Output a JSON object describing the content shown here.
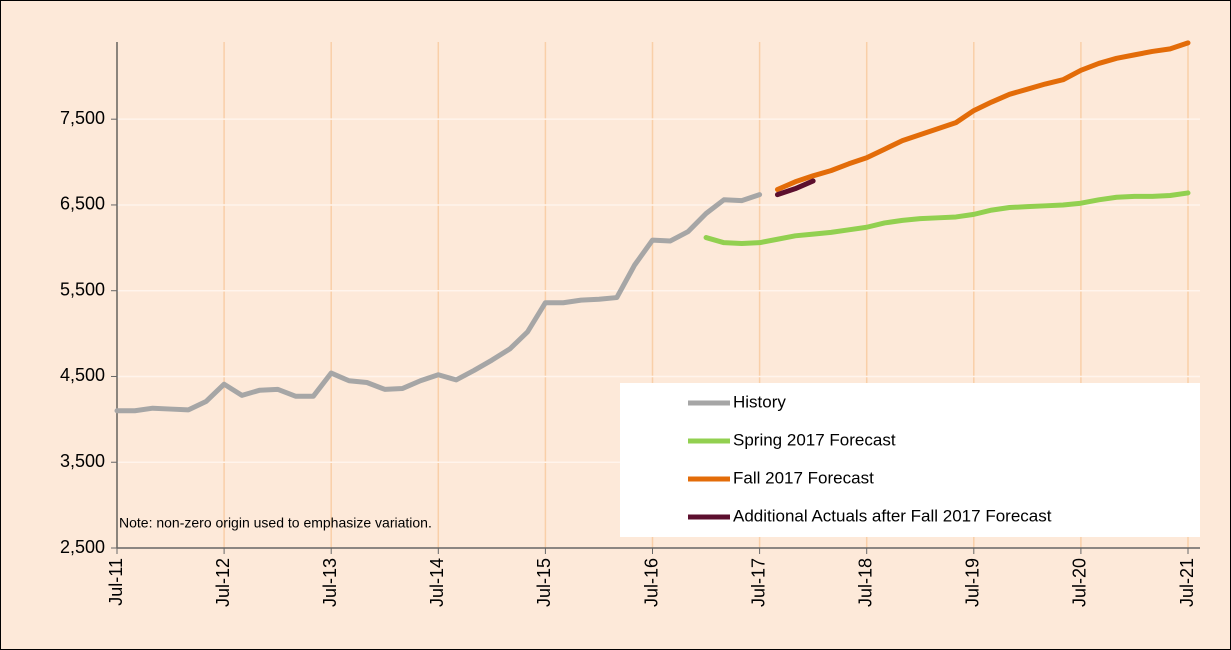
{
  "chart_data": {
    "type": "line",
    "note": "Note: non-zero origin used to emphasize variation.",
    "categories": [
      "Jul-11",
      null,
      null,
      null,
      null,
      null,
      "Jul-12",
      null,
      null,
      null,
      null,
      null,
      "Jul-13",
      null,
      null,
      null,
      null,
      null,
      "Jul-14",
      null,
      null,
      null,
      null,
      null,
      "Jul-15",
      null,
      null,
      null,
      null,
      null,
      "Jul-16",
      null,
      null,
      null,
      null,
      null,
      "Jul-17",
      null,
      null,
      null,
      null,
      null,
      "Jul-18",
      null,
      null,
      null,
      null,
      null,
      "Jul-19",
      null,
      null,
      null,
      null,
      null,
      "Jul-20",
      null,
      null,
      null,
      null,
      null,
      "Jul-21"
    ],
    "series": [
      {
        "name": "History",
        "color": "#a6a6a6",
        "values": [
          4100,
          4100,
          4130,
          4120,
          4110,
          4210,
          4410,
          4280,
          4340,
          4350,
          4270,
          4270,
          4540,
          4450,
          4430,
          4350,
          4360,
          4450,
          4520,
          4460,
          4570,
          4690,
          4820,
          5020,
          5360,
          5360,
          5390,
          5400,
          5420,
          5800,
          6090,
          6080,
          6190,
          6400,
          6560,
          6550,
          6620,
          null,
          null,
          null,
          null,
          null,
          null,
          null,
          null,
          null,
          null,
          null,
          null,
          null,
          null,
          null,
          null,
          null,
          null,
          null,
          null,
          null,
          null,
          null,
          null
        ]
      },
      {
        "name": "Spring 2017 Forecast",
        "color": "#92d050",
        "values": [
          null,
          null,
          null,
          null,
          null,
          null,
          null,
          null,
          null,
          null,
          null,
          null,
          null,
          null,
          null,
          null,
          null,
          null,
          null,
          null,
          null,
          null,
          null,
          null,
          null,
          null,
          null,
          null,
          null,
          null,
          null,
          null,
          null,
          6120,
          6060,
          6050,
          6060,
          6100,
          6140,
          6160,
          6180,
          6210,
          6240,
          6290,
          6320,
          6340,
          6350,
          6360,
          6390,
          6440,
          6470,
          6480,
          6490,
          6500,
          6520,
          6560,
          6590,
          6600,
          6600,
          6610,
          6640
        ]
      },
      {
        "name": "Fall 2017 Forecast",
        "color": "#e36c09",
        "values": [
          null,
          null,
          null,
          null,
          null,
          null,
          null,
          null,
          null,
          null,
          null,
          null,
          null,
          null,
          null,
          null,
          null,
          null,
          null,
          null,
          null,
          null,
          null,
          null,
          null,
          null,
          null,
          null,
          null,
          null,
          null,
          null,
          null,
          null,
          null,
          null,
          null,
          6680,
          6770,
          6840,
          6900,
          6980,
          7050,
          7150,
          7250,
          7320,
          7390,
          7460,
          7600,
          7700,
          7790,
          7850,
          7910,
          7960,
          8070,
          8150,
          8210,
          8250,
          8290,
          8320,
          8390
        ]
      },
      {
        "name": "Additional Actuals after Fall 2017 Forecast",
        "color": "#5c0f2e",
        "values": [
          null,
          null,
          null,
          null,
          null,
          null,
          null,
          null,
          null,
          null,
          null,
          null,
          null,
          null,
          null,
          null,
          null,
          null,
          null,
          null,
          null,
          null,
          null,
          null,
          null,
          null,
          null,
          null,
          null,
          null,
          null,
          null,
          null,
          null,
          null,
          null,
          null,
          6620,
          6690,
          6780,
          null,
          null,
          null,
          null,
          null,
          null,
          null,
          null,
          null,
          null,
          null,
          null,
          null,
          null,
          null,
          null,
          null,
          null,
          null,
          null,
          null
        ]
      }
    ],
    "ylim": [
      2500,
      8400
    ],
    "yticks": [
      {
        "value": 2500,
        "label": "2,500"
      },
      {
        "value": 3500,
        "label": "3,500"
      },
      {
        "value": 4500,
        "label": "4,500"
      },
      {
        "value": 5500,
        "label": "5,500"
      },
      {
        "value": 6500,
        "label": "6,500"
      },
      {
        "value": 7500,
        "label": "7,500"
      }
    ],
    "grid": true
  }
}
